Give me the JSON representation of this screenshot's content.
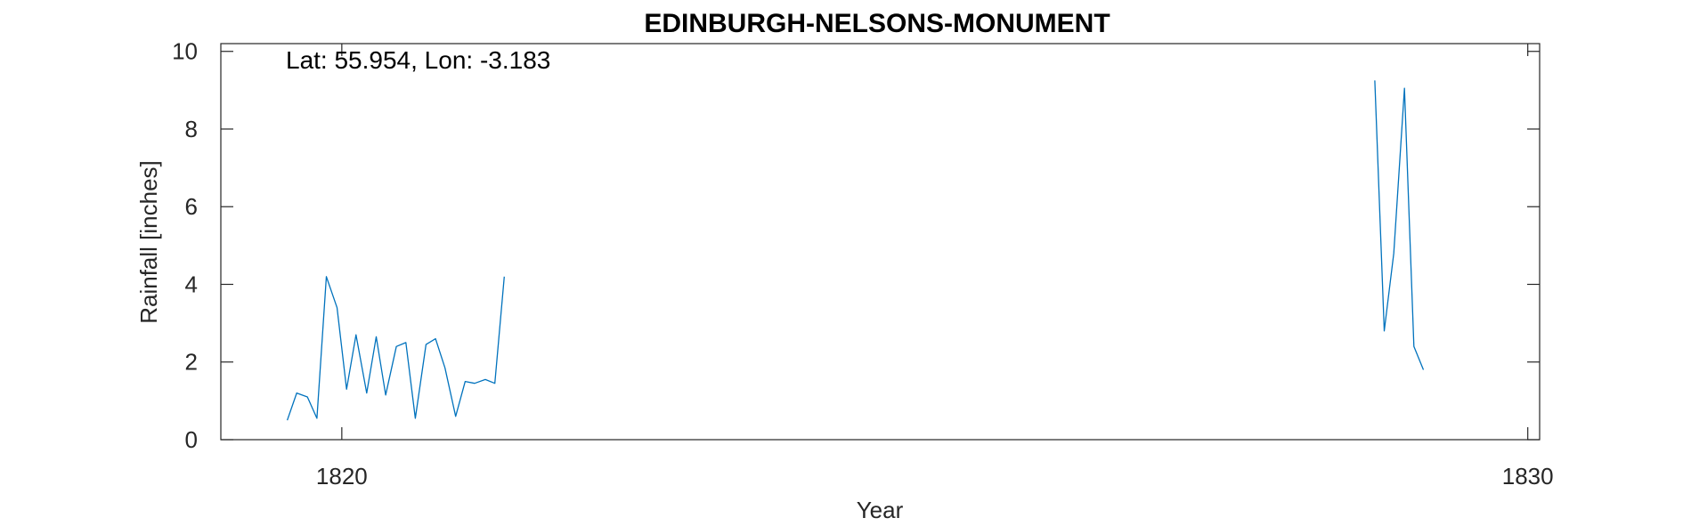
{
  "chart_data": {
    "type": "line",
    "title": "EDINBURGH-NELSONS-MONUMENT",
    "annotation": "Lat: 55.954, Lon: -3.183",
    "xlabel": "Year",
    "ylabel": "Rainfall [inches]",
    "xlim": [
      1818.98,
      1830.1
    ],
    "ylim": [
      0,
      10.2
    ],
    "xticks": [
      1820,
      1830
    ],
    "yticks": [
      0,
      2,
      4,
      6,
      8,
      10
    ],
    "grid": false,
    "line_color": "#0072BD",
    "series": [
      {
        "segments": [
          {
            "x": [
              1819.54,
              1819.62,
              1819.71,
              1819.79,
              1819.87,
              1819.96,
              1820.04,
              1820.12,
              1820.21,
              1820.29,
              1820.37,
              1820.46,
              1820.54,
              1820.62,
              1820.71,
              1820.79,
              1820.87,
              1820.96,
              1821.04,
              1821.12,
              1821.21,
              1821.29,
              1821.37
            ],
            "y": [
              0.5,
              1.2,
              1.1,
              0.55,
              4.2,
              3.4,
              1.3,
              2.7,
              1.2,
              2.65,
              1.15,
              2.4,
              2.5,
              0.55,
              2.45,
              2.6,
              1.85,
              0.6,
              1.5,
              1.45,
              1.55,
              1.45,
              4.2
            ]
          },
          {
            "x": [
              1828.71,
              1828.79,
              1828.87,
              1828.96,
              1829.04,
              1829.12
            ],
            "y": [
              9.25,
              2.8,
              4.8,
              9.05,
              2.4,
              1.8
            ]
          }
        ]
      }
    ]
  }
}
